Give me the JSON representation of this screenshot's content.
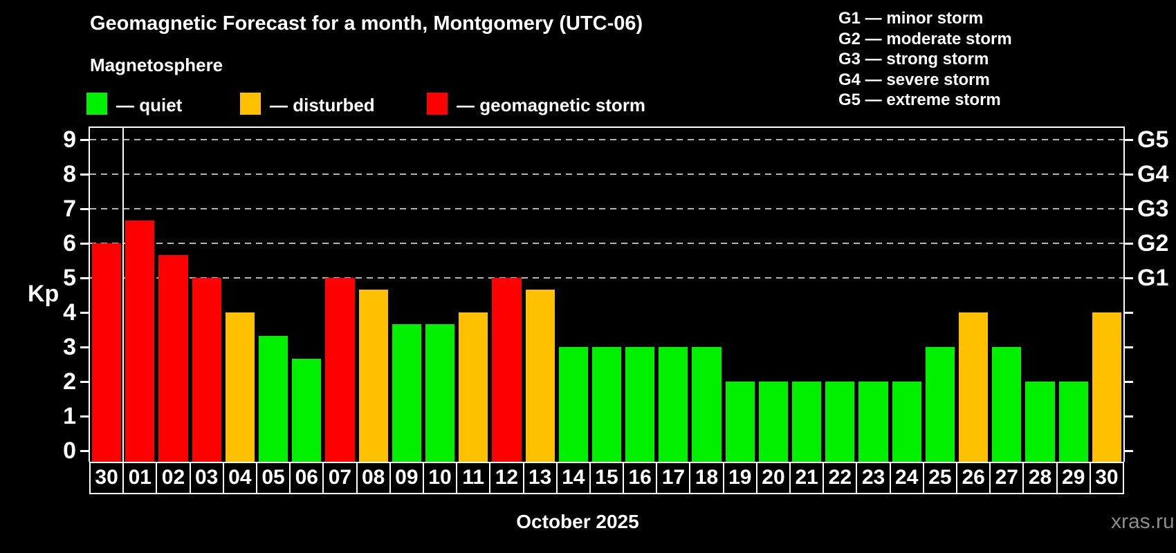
{
  "header": {
    "title": "Geomagnetic Forecast for a month, Montgomery (UTC-06)",
    "subtitle": "Magnetosphere",
    "legend": [
      {
        "key": "quiet",
        "label": "— quiet"
      },
      {
        "key": "disturbed",
        "label": "— disturbed"
      },
      {
        "key": "storm",
        "label": "— geomagnetic storm"
      }
    ],
    "g_legend": [
      "G1 — minor storm",
      "G2 — moderate storm",
      "G3 — strong storm",
      "G4 — severe storm",
      "G5 — extreme storm"
    ]
  },
  "colors": {
    "quiet": "#00f000",
    "disturbed": "#ffc000",
    "storm": "#ff0000",
    "grid": "#b4b4b4",
    "axis": "#ffffff",
    "watermark": "#8c8c8c",
    "background": "#000000"
  },
  "chart_data": {
    "type": "bar",
    "title": "Geomagnetic Forecast for a month, Montgomery (UTC-06)",
    "ylabel": "Kp",
    "xlabel": "October 2025",
    "ylim": [
      0,
      9
    ],
    "grid": "dashed horizontal at Kp 5-9 only",
    "legend_position": "top-left above plot",
    "categories": [
      "30",
      "01",
      "02",
      "03",
      "04",
      "05",
      "06",
      "07",
      "08",
      "09",
      "10",
      "11",
      "12",
      "13",
      "14",
      "15",
      "16",
      "17",
      "18",
      "19",
      "20",
      "21",
      "22",
      "23",
      "24",
      "25",
      "26",
      "27",
      "28",
      "29",
      "30"
    ],
    "values": [
      6,
      6.67,
      5.67,
      5,
      4,
      3.33,
      2.67,
      5,
      4.67,
      3.67,
      3.67,
      4,
      5,
      4.67,
      3,
      3,
      3,
      3,
      3,
      2,
      2,
      2,
      2,
      2,
      2,
      3,
      4,
      3,
      2,
      2,
      4
    ],
    "statuses": [
      "storm",
      "storm",
      "storm",
      "storm",
      "disturbed",
      "quiet",
      "quiet",
      "storm",
      "disturbed",
      "quiet",
      "quiet",
      "disturbed",
      "storm",
      "disturbed",
      "quiet",
      "quiet",
      "quiet",
      "quiet",
      "quiet",
      "quiet",
      "quiet",
      "quiet",
      "quiet",
      "quiet",
      "quiet",
      "quiet",
      "disturbed",
      "quiet",
      "quiet",
      "quiet",
      "disturbed"
    ],
    "left_ticks": [
      "0",
      "1",
      "2",
      "3",
      "4",
      "5",
      "6",
      "7",
      "8",
      "9"
    ],
    "g_scale": [
      {
        "label": "G1",
        "kp": 5
      },
      {
        "label": "G2",
        "kp": 6
      },
      {
        "label": "G3",
        "kp": 7
      },
      {
        "label": "G4",
        "kp": 8
      },
      {
        "label": "G5",
        "kp": 9
      }
    ],
    "gridlines_kp": [
      5,
      6,
      7,
      8,
      9
    ],
    "separator_after_index": 0
  },
  "footer": {
    "month_label": "October 2025",
    "watermark": "xras.ru"
  }
}
